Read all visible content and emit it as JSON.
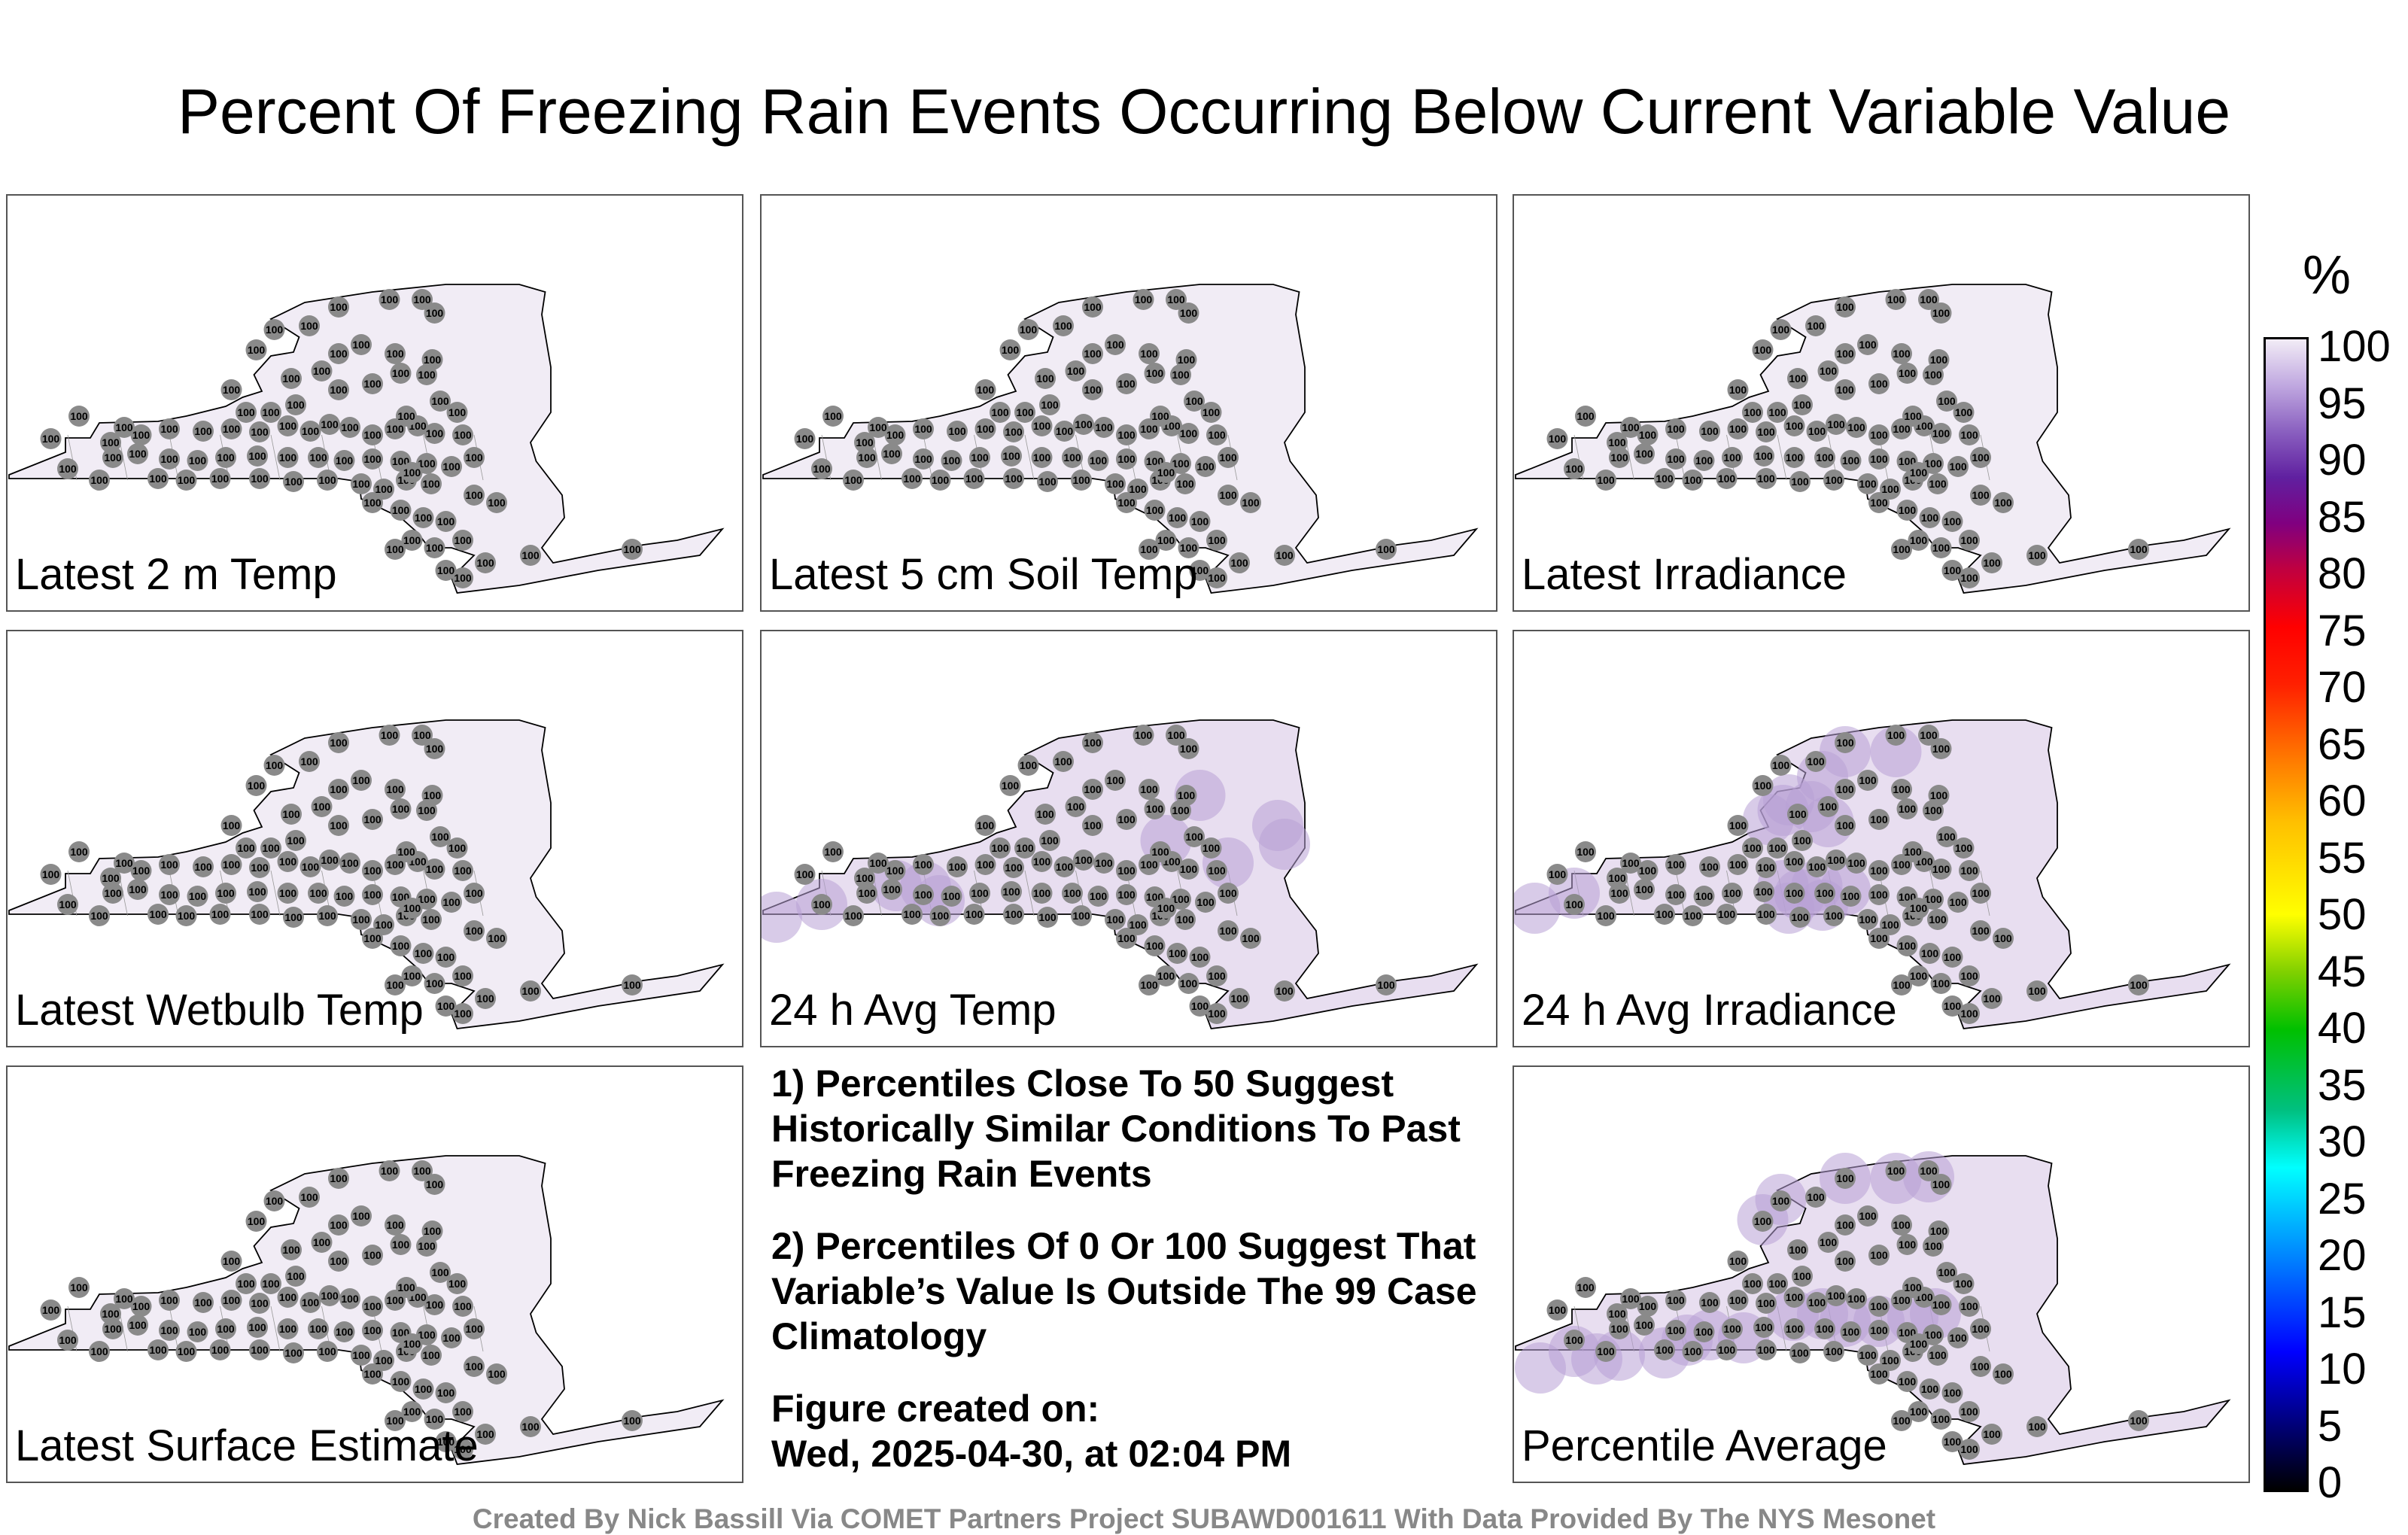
{
  "title": "Percent Of Freezing Rain Events Occurring Below Current Variable Value",
  "panels": [
    {
      "label": "Latest 2 m Temp",
      "pct": 100
    },
    {
      "label": "Latest 5 cm Soil Temp",
      "pct": 100
    },
    {
      "label": "Latest Irradiance",
      "pct": 100
    },
    {
      "label": "Latest Wetbulb Temp",
      "pct": 100
    },
    {
      "label": "24 h Avg Temp",
      "pct": 99
    },
    {
      "label": "24 h Avg Irradiance",
      "pct": 98
    },
    {
      "label": "Latest Surface Estimate",
      "pct": 100
    },
    {
      "label": "Percentile Average",
      "pct": 99
    }
  ],
  "notes": {
    "n1": "1) Percentiles Close To 50 Suggest Historically Similar Conditions To Past Freezing Rain Events",
    "n2": "2) Percentiles Of 0 Or 100 Suggest That Variable’s Value Is Outside The 99 Case Climatology",
    "created_label": "Figure created on:",
    "created_value": "Wed, 2025-04-30, at 02:04 PM"
  },
  "colorbar": {
    "unit": "%",
    "ticks": [
      "100",
      "95",
      "90",
      "85",
      "80",
      "75",
      "70",
      "65",
      "60",
      "55",
      "50",
      "45",
      "40",
      "35",
      "30",
      "25",
      "20",
      "15",
      "10",
      "5",
      "0"
    ]
  },
  "credit": "Created By Nick Bassill Via COMET Partners Project SUBAWD001611 With Data Provided By The NYS Mesonet"
}
